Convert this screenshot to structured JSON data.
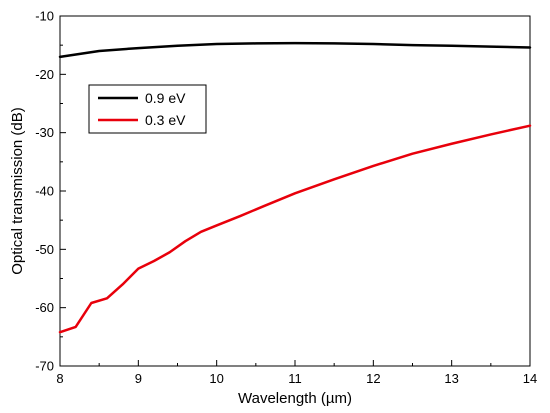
{
  "chart_data": {
    "type": "line",
    "title": "",
    "xlabel": "Wavelength (µm)",
    "ylabel": "Optical transmission (dB)",
    "xlim": [
      8,
      14
    ],
    "ylim": [
      -70,
      -10
    ],
    "xticks": [
      8,
      9,
      10,
      11,
      12,
      13,
      14
    ],
    "xtick_labels": [
      "8",
      "9",
      "10",
      "11",
      "12",
      "13",
      "14"
    ],
    "yticks": [
      -70,
      -60,
      -50,
      -40,
      -30,
      -20,
      -10
    ],
    "ytick_labels": [
      "-70",
      "-60",
      "-50",
      "-40",
      "-30",
      "-20",
      "-10"
    ],
    "grid": false,
    "legend_position": "upper-left",
    "series": [
      {
        "name": "0.9 eV",
        "color": "#000000",
        "x": [
          8.0,
          8.5,
          9.0,
          9.5,
          10.0,
          10.5,
          11.0,
          11.5,
          12.0,
          12.5,
          13.0,
          13.5,
          14.0
        ],
        "y": [
          -17.0,
          -16.0,
          -15.5,
          -15.1,
          -14.8,
          -14.7,
          -14.65,
          -14.7,
          -14.8,
          -15.0,
          -15.1,
          -15.25,
          -15.4
        ]
      },
      {
        "name": "0.3 eV",
        "color": "#e8000b",
        "x": [
          8.0,
          8.2,
          8.4,
          8.6,
          8.8,
          9.0,
          9.2,
          9.4,
          9.6,
          9.8,
          10.0,
          10.3,
          10.6,
          11.0,
          11.5,
          12.0,
          12.5,
          13.0,
          13.5,
          14.0
        ],
        "y": [
          -64.2,
          -63.3,
          -59.2,
          -58.4,
          -56.0,
          -53.3,
          -52.0,
          -50.5,
          -48.6,
          -47.0,
          -45.9,
          -44.3,
          -42.6,
          -40.4,
          -38.0,
          -35.7,
          -33.6,
          -31.9,
          -30.3,
          -28.8
        ]
      }
    ]
  }
}
